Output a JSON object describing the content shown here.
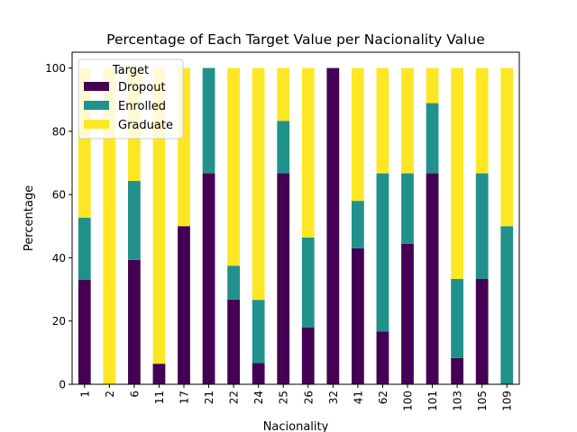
{
  "chart_data": {
    "type": "bar",
    "stacked": true,
    "title": "Percentage of Each Target Value per Nacionality Value",
    "xlabel": "Nacionality",
    "ylabel": "Percentage",
    "ylim": [
      0,
      105
    ],
    "yticks": [
      0,
      20,
      40,
      60,
      80,
      100
    ],
    "categories": [
      "1",
      "2",
      "6",
      "11",
      "17",
      "21",
      "22",
      "24",
      "25",
      "26",
      "32",
      "41",
      "62",
      "100",
      "101",
      "103",
      "105",
      "109"
    ],
    "series": [
      {
        "name": "Dropout",
        "color": "#440154",
        "values": [
          33,
          0,
          39.3,
          6.5,
          50,
          66.7,
          26.8,
          6.7,
          66.7,
          18,
          100,
          43,
          16.7,
          44.4,
          66.7,
          8.3,
          33.3,
          0
        ]
      },
      {
        "name": "Enrolled",
        "color": "#21918c",
        "values": [
          19.7,
          0,
          25,
          0,
          0,
          33.3,
          10.7,
          20,
          16.6,
          28.4,
          0,
          15,
          50,
          22.3,
          22.2,
          25,
          33.4,
          50
        ]
      },
      {
        "name": "Graduate",
        "color": "#fde725",
        "values": [
          47.3,
          100,
          35.7,
          93.5,
          50,
          0,
          62.5,
          73.3,
          16.7,
          53.6,
          0,
          42,
          33.3,
          33.3,
          11.1,
          66.7,
          33.3,
          50
        ]
      }
    ],
    "legend": {
      "title": "Target",
      "placement": "top-left"
    },
    "grid": false
  }
}
